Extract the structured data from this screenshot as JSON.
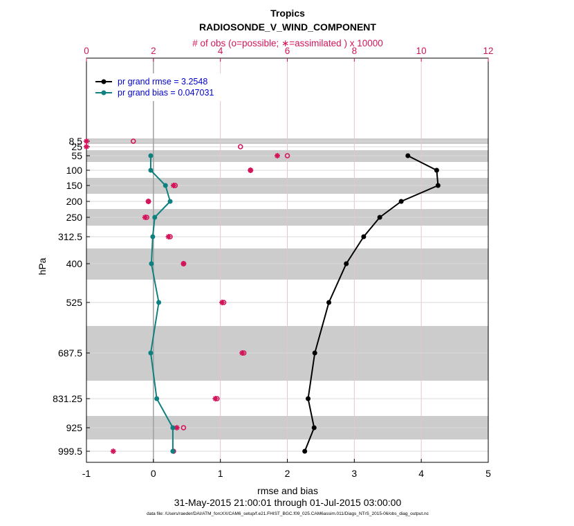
{
  "header": {
    "title": "Tropics",
    "subtitle": "RADIOSONDE_V_WIND_COMPONENT",
    "top_axis_label": "# of obs (o=possible; ∗=assimilated ) x 10000"
  },
  "footer": {
    "date_range": "31-May-2015 21:00:01 through 01-Jul-2015 03:00:00",
    "data_file": "data file: /Users/raeder/DAI/ATM_forcXX/CAM6_setup/f.e21.FHIST_BGC.f09_025.CAM6assim.011/Diags_NTrS_2015-06/obs_diag_output.nc"
  },
  "colors": {
    "rmse": "#000000",
    "bias": "#0f8080",
    "obs": "#d4145a",
    "band": "#cccccc",
    "grid": "#e6c4cf"
  },
  "chart_data": {
    "type": "line",
    "xlabel": "rmse and bias",
    "ylabel": "hPa",
    "xlim": [
      -1,
      5
    ],
    "x_ticks": [
      "-1",
      "0",
      "1",
      "2",
      "3",
      "4",
      "5"
    ],
    "top_xlim": [
      0,
      12
    ],
    "top_x_ticks": [
      "0",
      "2",
      "4",
      "6",
      "8",
      "10",
      "12"
    ],
    "levels": [
      8.5,
      25,
      55,
      100,
      150,
      200,
      250,
      312.5,
      400,
      525,
      687.5,
      831.25,
      925,
      999.5
    ],
    "level_labels": [
      "8.5",
      "25",
      "55",
      "100",
      "150",
      "200",
      "250",
      "312.5",
      "400",
      "525",
      "687.5",
      "831.25",
      "925",
      "999.5"
    ],
    "shaded_levels": [
      8.5,
      55,
      150,
      250,
      400,
      687.5,
      925
    ],
    "legend": {
      "position": "top-left",
      "entries": [
        "pr grand rmse = 3.2548",
        "pr grand bias = 0.047031"
      ]
    },
    "series": [
      {
        "name": "pr grand rmse = 3.2548",
        "levels": [
          55,
          100,
          150,
          200,
          250,
          312.5,
          400,
          525,
          687.5,
          831.25,
          925,
          999.5
        ],
        "values": [
          3.8,
          4.23,
          4.25,
          3.7,
          3.38,
          3.14,
          2.88,
          2.62,
          2.41,
          2.31,
          2.4,
          2.26
        ]
      },
      {
        "name": "pr grand bias = 0.047031",
        "levels": [
          55,
          100,
          150,
          200,
          250,
          312.5,
          400,
          525,
          687.5,
          831.25,
          925,
          999.5
        ],
        "values": [
          -0.04,
          -0.04,
          0.18,
          0.25,
          0.02,
          -0.01,
          -0.03,
          0.08,
          -0.04,
          0.05,
          0.29,
          0.29
        ]
      }
    ],
    "obs_possible": {
      "levels": [
        8.5,
        25,
        55,
        100,
        150,
        200,
        250,
        312.5,
        400,
        525,
        687.5,
        831.25,
        925,
        999.5
      ],
      "values": [
        1.4,
        4.6,
        6.0,
        4.9,
        2.65,
        1.85,
        1.8,
        2.5,
        2.9,
        4.1,
        4.7,
        3.9,
        2.9,
        2.6
      ]
    },
    "obs_assimilated": {
      "levels": [
        8.5,
        25,
        55,
        100,
        150,
        200,
        250,
        312.5,
        400,
        525,
        687.5,
        831.25,
        925,
        999.5
      ],
      "values": [
        0.0,
        0.0,
        5.7,
        4.9,
        2.6,
        1.85,
        1.75,
        2.45,
        2.9,
        4.05,
        4.65,
        3.85,
        2.7,
        0.8
      ]
    }
  }
}
